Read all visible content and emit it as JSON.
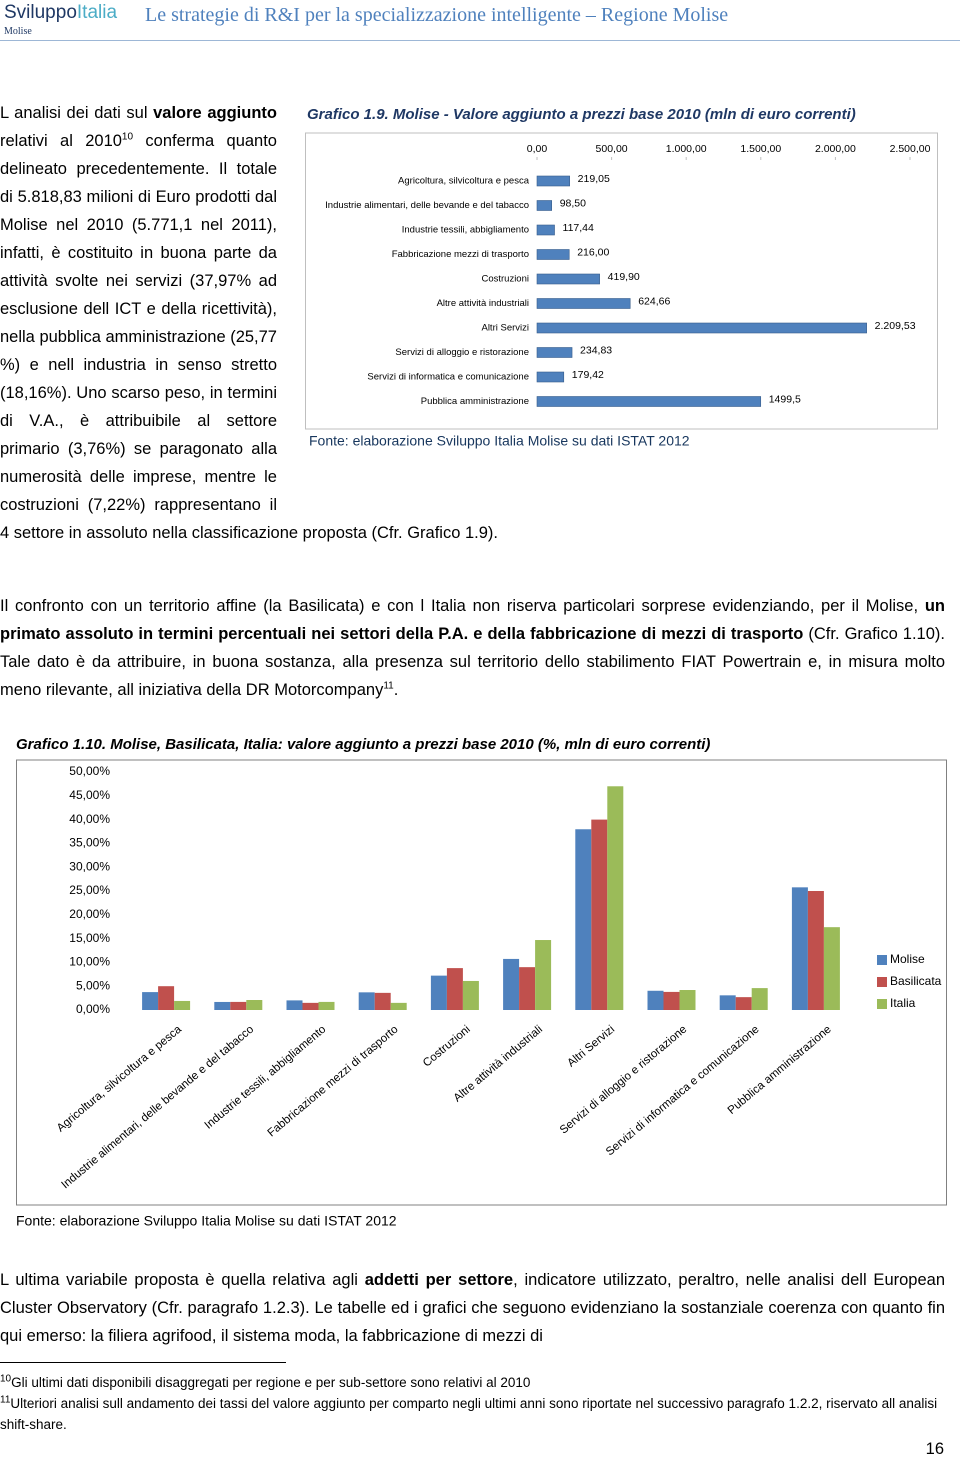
{
  "header": {
    "logo": "Sviluppo",
    "logo_accent": "Italia",
    "logo_sub": "Molise",
    "title": "Le strategie di R&I per la specializzazione intelligente – Regione Molise"
  },
  "paragraphs": [
    [
      {
        "text": "L analisi dei dati sul "
      },
      {
        "text": "valore aggiunto",
        "bold": true
      },
      {
        "text": " relativi al 2010"
      },
      {
        "text": "10",
        "sup": true
      },
      {
        "text": " conferma quanto delineato precedentemente. Il totale di 5.818,83 milioni di Euro prodotti dal Molise nel 2010 (5.771,1 nel 2011), infatti, è costituito in buona parte da attività svolte nei servizi (37,97% ad esclusione dell ICT e della ricettività), nella pubblica amministrazione (25,77 %) e nell industria in senso stretto (18,16%). Uno scarso peso, in termini di V.A., è attribuibile al settore primario (3,76%) se paragonato alla numerosità delle imprese, mentre le costruzioni (7,22%) rappresentano il 4 settore in assoluto nella classificazione proposta (Cfr. Grafico 1.9)."
      }
    ],
    [
      {
        "text": "Il confronto con un territorio affine (la Basilicata) e con l Italia non riserva particolari sorprese evidenziando, per il Molise, "
      },
      {
        "text": "un primato assoluto in termini percentuali nei settori della P.A. e della fabbricazione di mezzi di trasporto",
        "bold": true
      },
      {
        "text": " (Cfr. Grafico 1.10). Tale dato è da attribuire, in buona sostanza, alla presenza sul territorio dello stabilimento FIAT Powertrain e, in misura molto meno rilevante, all iniziativa della DR Motorcompany"
      },
      {
        "text": "11",
        "sup": true
      },
      {
        "text": "."
      }
    ],
    [
      {
        "text": "L ultima variabile proposta è quella relativa agli "
      },
      {
        "text": "addetti per settore",
        "bold": true
      },
      {
        "text": ", indicatore utilizzato, peraltro, nelle analisi dell European Cluster Observatory (Cfr. paragrafo 1.2.3). Le tabelle ed i grafici che seguono evidenziano la sostanziale coerenza con quanto fin qui emerso: la filiera agrifood, il sistema moda, la fabbricazione di mezzi di"
      }
    ]
  ],
  "chart_data": [
    {
      "type": "barh",
      "title": "Grafico 1.9. Molise - Valore aggiunto a prezzi base 2010 (mln di euro correnti)",
      "source": "Fonte: elaborazione Sviluppo Italia Molise su dati ISTAT 2012",
      "categories": [
        "Agricoltura, silvicoltura e pesca",
        "Industrie alimentari, delle bevande e del tabacco",
        "Industrie tessili, abbigliamento",
        "Fabbricazione mezzi di trasporto",
        "Costruzioni",
        "Altre attività industriali",
        "Altri Servizi",
        "Servizi di alloggio e ristorazione",
        "Servizi di informatica e comunicazione",
        "Pubblica amministrazione"
      ],
      "values": [
        219.05,
        98.5,
        117.44,
        216,
        419.9,
        624.66,
        2209.53,
        234.83,
        179.42,
        1499.5
      ],
      "value_labels": [
        "219,05",
        "98,50",
        "117,44",
        "216,00",
        "419,90",
        "624,66",
        "2.209,53",
        "234,83",
        "179,42",
        "1499,5"
      ],
      "color": "#4f81bd",
      "xlim": [
        0,
        2500
      ],
      "xticks": [
        {
          "value": 0,
          "label": "0,00"
        },
        {
          "value": 500,
          "label": "500,00"
        },
        {
          "value": 1000,
          "label": "1.000,00"
        },
        {
          "value": 1500,
          "label": "1.500,00"
        },
        {
          "value": 2000,
          "label": "2.000,00"
        },
        {
          "value": 2500,
          "label": "2.500,00"
        }
      ]
    },
    {
      "type": "bar",
      "title": "Grafico 1.10. Molise, Basilicata, Italia: valore aggiunto a prezzi base 2010 (%, mln di euro correnti)",
      "source": "Fonte: elaborazione Sviluppo Italia Molise su dati ISTAT 2012",
      "categories": [
        "Agricoltura, silvicoltura e pesca",
        "Industrie alimentari, delle bevande e del tabacco",
        "Industrie tessili, abbigliamento",
        "Fabbricazione mezzi di trasporto",
        "Costruzioni",
        "Altre attività industriali",
        "Altri Servizi",
        "Servizi di alloggio e ristorazione",
        "Servizi di informatica e comunicazione",
        "Pubblica amministrazione"
      ],
      "series": [
        {
          "name": "Molise",
          "color": "#4f81bd",
          "values": [
            3.76,
            1.69,
            2.02,
            3.71,
            7.22,
            10.73,
            37.97,
            4.04,
            3.08,
            25.77
          ]
        },
        {
          "name": "Basilicata",
          "color": "#c0504d",
          "values": [
            5.0,
            1.7,
            1.5,
            3.6,
            8.8,
            9.0,
            40.0,
            3.8,
            2.7,
            25.0
          ]
        },
        {
          "name": "Italia",
          "color": "#9bbb59",
          "values": [
            1.9,
            2.1,
            1.7,
            1.5,
            6.1,
            14.7,
            47.0,
            4.2,
            4.6,
            17.4
          ]
        }
      ],
      "ylim": [
        0,
        50
      ],
      "yticks": [
        {
          "value": 0,
          "label": "0,00%"
        },
        {
          "value": 5,
          "label": "5,00%"
        },
        {
          "value": 10,
          "label": "10,00%"
        },
        {
          "value": 15,
          "label": "15,00%"
        },
        {
          "value": 20,
          "label": "20,00%"
        },
        {
          "value": 25,
          "label": "25,00%"
        },
        {
          "value": 30,
          "label": "30,00%"
        },
        {
          "value": 35,
          "label": "35,00%"
        },
        {
          "value": 40,
          "label": "40,00%"
        },
        {
          "value": 45,
          "label": "45,00%"
        },
        {
          "value": 50,
          "label": "50,00%"
        }
      ],
      "legend": "right"
    }
  ],
  "footnotes": [
    {
      "number": "10",
      "text": "Gli ultimi dati disponibili disaggregati per regione e per sub-settore sono relativi al 2010"
    },
    {
      "number": "11",
      "text": "Ulteriori analisi sull andamento dei tassi del valore aggiunto per comparto negli ultimi anni sono riportate nel successivo paragrafo 1.2.2, riservato all analisi shift-share."
    }
  ],
  "page_number": "16"
}
